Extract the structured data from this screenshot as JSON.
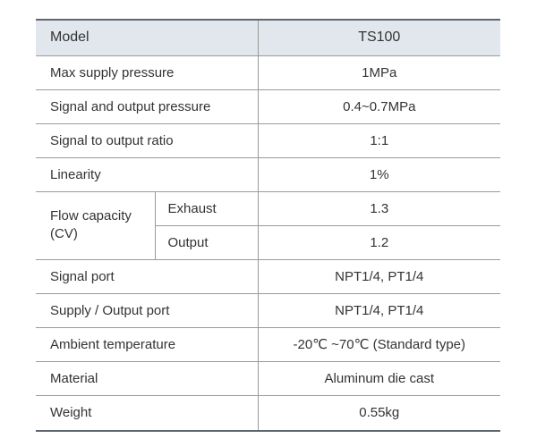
{
  "header": {
    "model_label": "Model",
    "model_value": "TS100"
  },
  "rows": [
    {
      "label": "Max supply pressure",
      "value": "1MPa"
    },
    {
      "label": "Signal and output pressure",
      "value": "0.4~0.7MPa"
    },
    {
      "label": "Signal to output ratio",
      "value": "1:1"
    },
    {
      "label": "Linearity",
      "value": "1%"
    }
  ],
  "flow": {
    "label_line1": "Flow capacity",
    "label_line2": "(CV)",
    "sub": [
      {
        "label": "Exhaust",
        "value": "1.3"
      },
      {
        "label": "Output",
        "value": "1.2"
      }
    ]
  },
  "rows2": [
    {
      "label": "Signal port",
      "value": "NPT1/4, PT1/4"
    },
    {
      "label": "Supply / Output port",
      "value": "NPT1/4, PT1/4"
    },
    {
      "label": "Ambient temperature",
      "value": "-20℃ ~70℃ (Standard type)"
    },
    {
      "label": "Material",
      "value": "Aluminum die cast"
    },
    {
      "label": "Weight",
      "value": "0.55kg"
    }
  ]
}
